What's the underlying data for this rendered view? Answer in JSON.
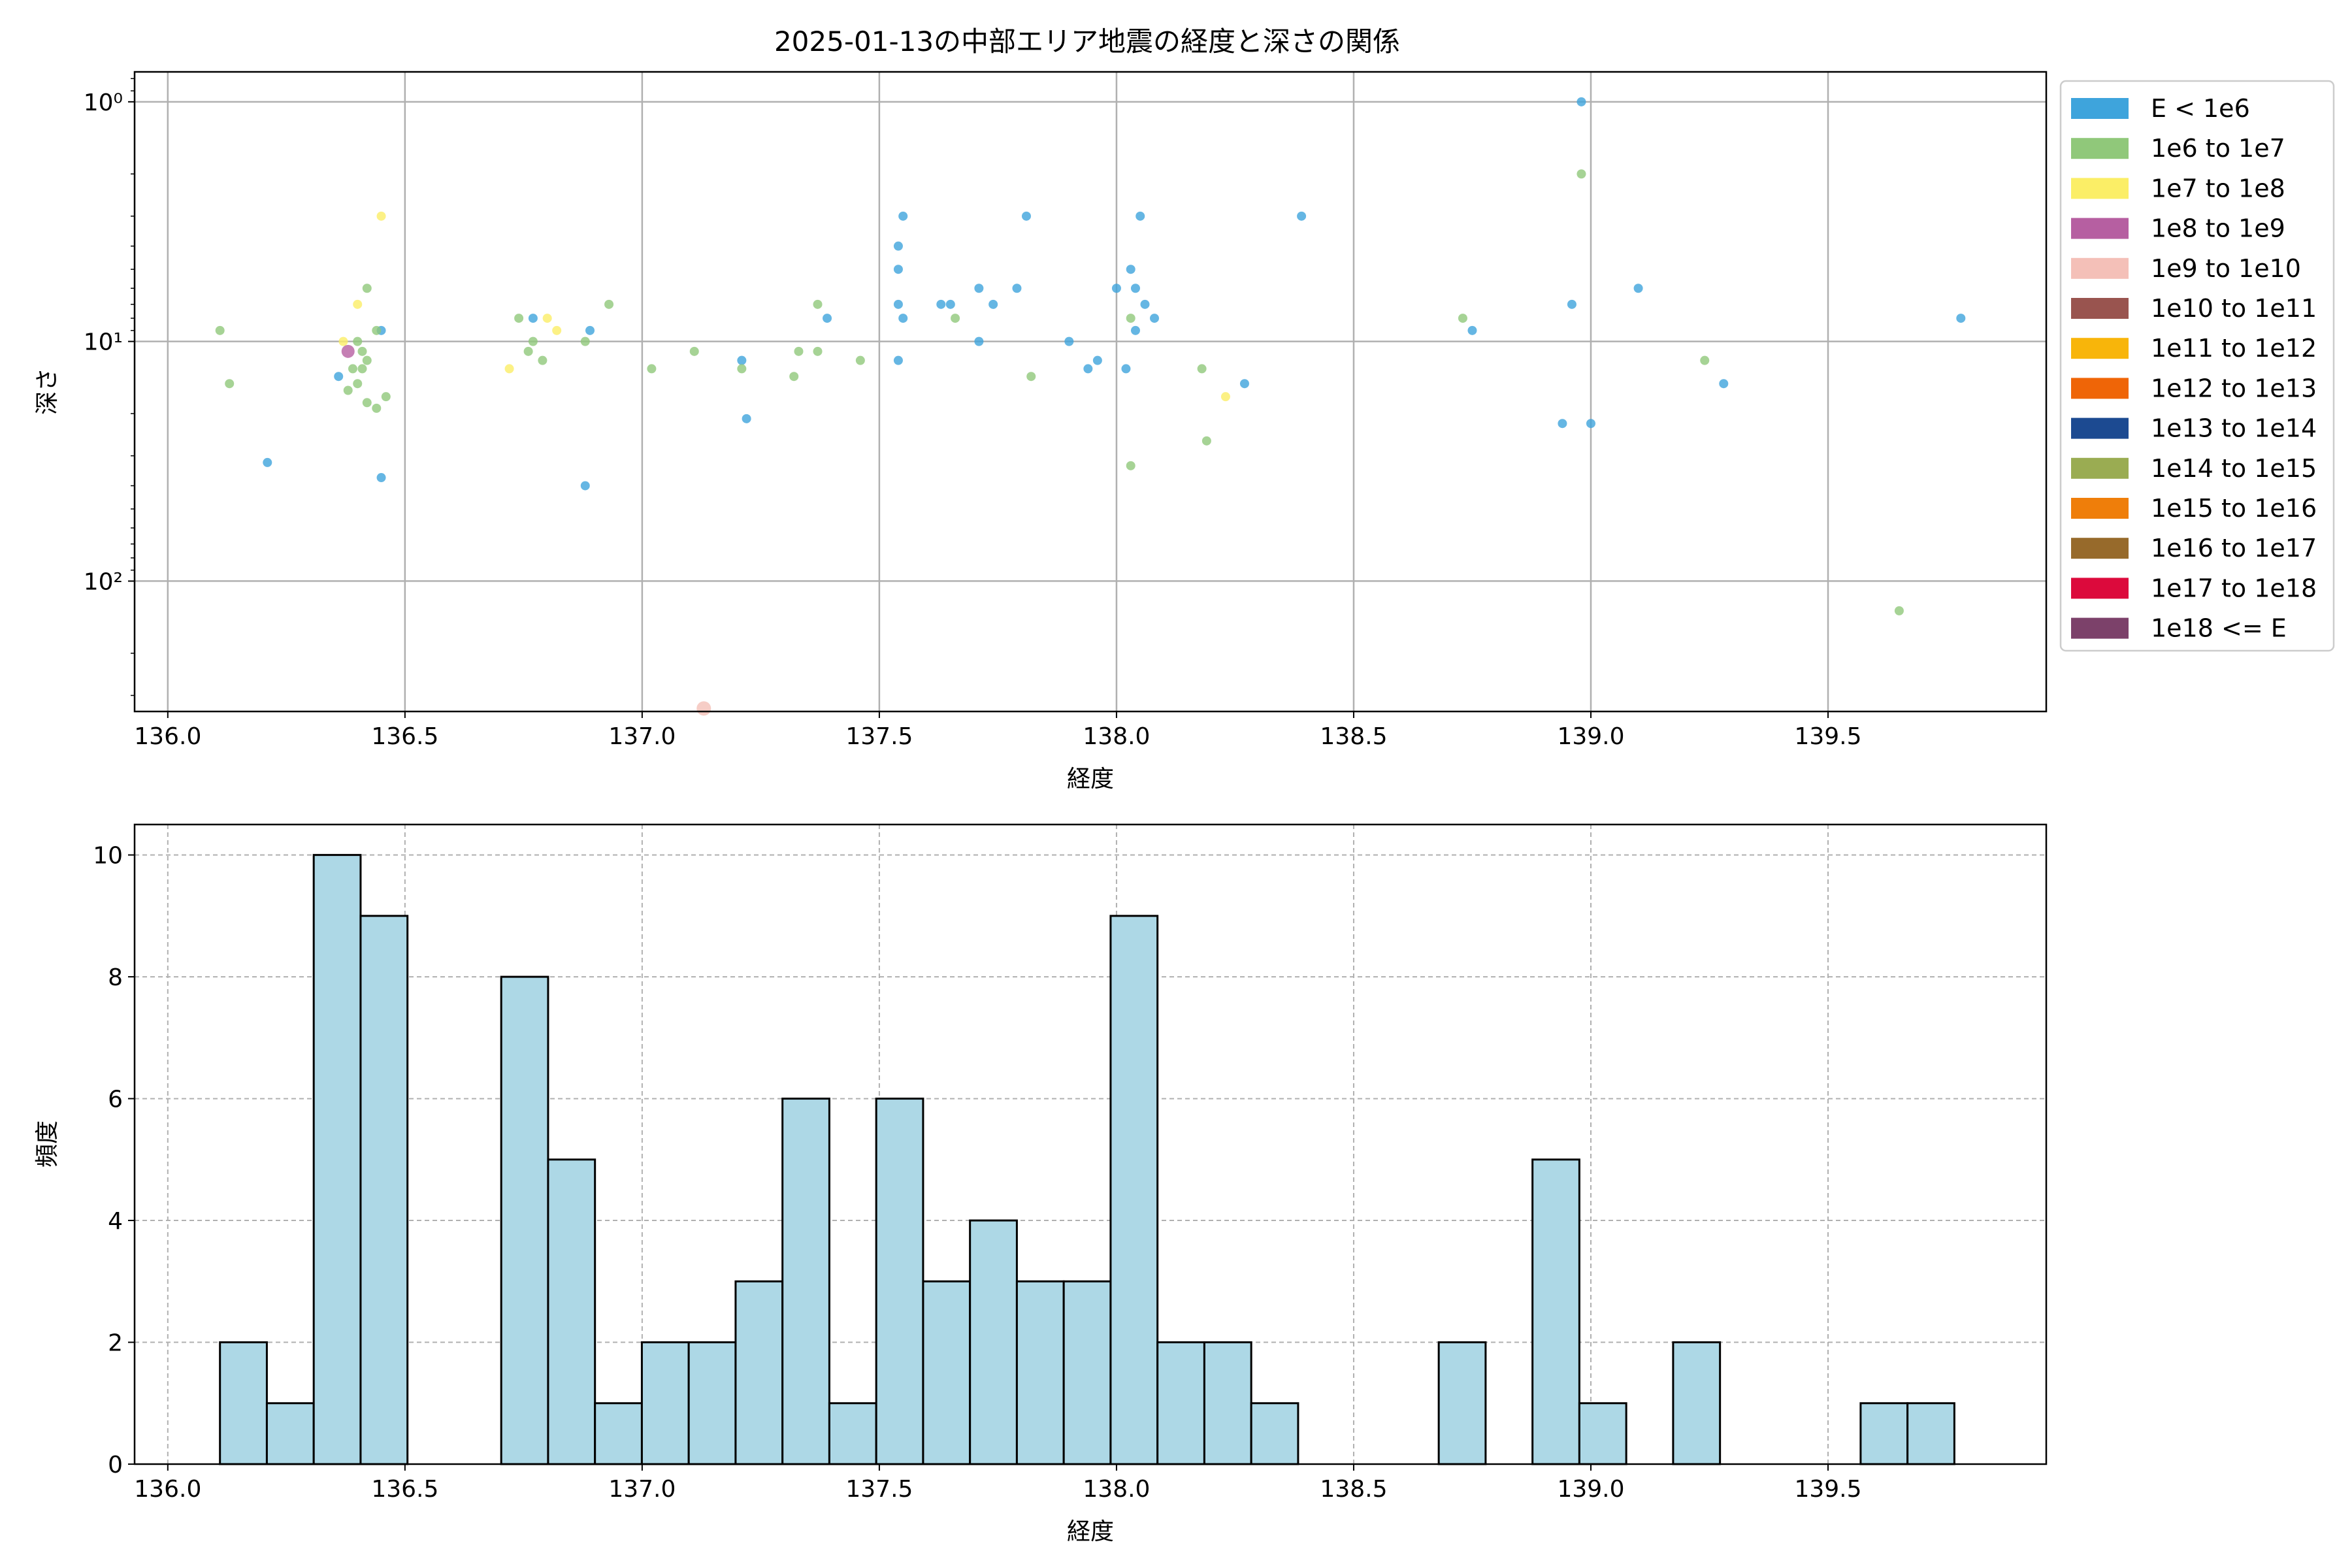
{
  "title": "2025-01-13の中部エリア地震の経度と深さの関係",
  "chart_data": [
    {
      "type": "scatter",
      "xlabel": "経度",
      "ylabel": "深さ",
      "xlim": [
        135.93,
        139.96
      ],
      "ylim": [
        0.75,
        350
      ],
      "y_scale": "log",
      "y_inverted": true,
      "x_ticks": [
        "136.0",
        "136.5",
        "137.0",
        "137.5",
        "138.0",
        "138.5",
        "139.0",
        "139.5"
      ],
      "y_ticks": [
        {
          "value": 1,
          "label": "10⁰"
        },
        {
          "value": 10,
          "label": "10¹"
        },
        {
          "value": 100,
          "label": "10²"
        }
      ],
      "grid": true,
      "legend_position": "outside-right",
      "legend": [
        {
          "label": "E < 1e6",
          "color": "#3ea4dc"
        },
        {
          "label": "1e6 to 1e7",
          "color": "#90c87a"
        },
        {
          "label": "1e7 to 1e8",
          "color": "#fbee66"
        },
        {
          "label": "1e8 to 1e9",
          "color": "#b65fa1"
        },
        {
          "label": "1e9 to 1e10",
          "color": "#f4c0b8"
        },
        {
          "label": "1e10 to 1e11",
          "color": "#99544f"
        },
        {
          "label": "1e11 to 1e12",
          "color": "#f8b50a"
        },
        {
          "label": "1e12 to 1e13",
          "color": "#ef6507"
        },
        {
          "label": "1e13 to 1e14",
          "color": "#1c4a91"
        },
        {
          "label": "1e14 to 1e15",
          "color": "#9aac52"
        },
        {
          "label": "1e15 to 1e16",
          "color": "#ef7e0a"
        },
        {
          "label": "1e16 to 1e17",
          "color": "#976a2b"
        },
        {
          "label": "1e17 to 1e18",
          "color": "#dc0a3c"
        },
        {
          "label": "1e18 <= E",
          "color": "#7c416a"
        }
      ],
      "points": [
        {
          "x": 136.21,
          "y": 32,
          "c": 0
        },
        {
          "x": 136.36,
          "y": 14,
          "c": 0
        },
        {
          "x": 136.45,
          "y": 37,
          "c": 0
        },
        {
          "x": 136.45,
          "y": 9,
          "c": 0
        },
        {
          "x": 136.77,
          "y": 8,
          "c": 0
        },
        {
          "x": 136.88,
          "y": 40,
          "c": 0
        },
        {
          "x": 136.89,
          "y": 9,
          "c": 0
        },
        {
          "x": 137.21,
          "y": 12,
          "c": 0
        },
        {
          "x": 137.22,
          "y": 21,
          "c": 0
        },
        {
          "x": 137.39,
          "y": 8,
          "c": 0
        },
        {
          "x": 137.54,
          "y": 12,
          "c": 0
        },
        {
          "x": 137.54,
          "y": 7,
          "c": 0
        },
        {
          "x": 137.54,
          "y": 5,
          "c": 0
        },
        {
          "x": 137.54,
          "y": 4,
          "c": 0
        },
        {
          "x": 137.55,
          "y": 8,
          "c": 0
        },
        {
          "x": 137.55,
          "y": 3,
          "c": 0
        },
        {
          "x": 137.63,
          "y": 7,
          "c": 0
        },
        {
          "x": 137.65,
          "y": 7,
          "c": 0
        },
        {
          "x": 137.71,
          "y": 6,
          "c": 0
        },
        {
          "x": 137.71,
          "y": 10,
          "c": 0
        },
        {
          "x": 137.74,
          "y": 7,
          "c": 0
        },
        {
          "x": 137.79,
          "y": 6,
          "c": 0
        },
        {
          "x": 137.81,
          "y": 3,
          "c": 0
        },
        {
          "x": 137.9,
          "y": 10,
          "c": 0
        },
        {
          "x": 137.94,
          "y": 13,
          "c": 0
        },
        {
          "x": 137.96,
          "y": 12,
          "c": 0
        },
        {
          "x": 138.0,
          "y": 6,
          "c": 0
        },
        {
          "x": 138.02,
          "y": 13,
          "c": 0
        },
        {
          "x": 138.03,
          "y": 5,
          "c": 0
        },
        {
          "x": 138.04,
          "y": 9,
          "c": 0
        },
        {
          "x": 138.04,
          "y": 6,
          "c": 0
        },
        {
          "x": 138.05,
          "y": 3,
          "c": 0
        },
        {
          "x": 138.06,
          "y": 7,
          "c": 0
        },
        {
          "x": 138.08,
          "y": 8,
          "c": 0
        },
        {
          "x": 138.27,
          "y": 15,
          "c": 0
        },
        {
          "x": 138.39,
          "y": 3,
          "c": 0
        },
        {
          "x": 138.75,
          "y": 9,
          "c": 0
        },
        {
          "x": 138.94,
          "y": 22,
          "c": 0
        },
        {
          "x": 138.96,
          "y": 7,
          "c": 0
        },
        {
          "x": 138.98,
          "y": 1,
          "c": 0
        },
        {
          "x": 139.0,
          "y": 22,
          "c": 0
        },
        {
          "x": 139.1,
          "y": 6,
          "c": 0
        },
        {
          "x": 139.28,
          "y": 15,
          "c": 0
        },
        {
          "x": 139.78,
          "y": 8,
          "c": 0
        },
        {
          "x": 136.11,
          "y": 9,
          "c": 1
        },
        {
          "x": 136.13,
          "y": 15,
          "c": 1
        },
        {
          "x": 136.38,
          "y": 16,
          "c": 1
        },
        {
          "x": 136.39,
          "y": 13,
          "c": 1
        },
        {
          "x": 136.4,
          "y": 15,
          "c": 1
        },
        {
          "x": 136.4,
          "y": 10,
          "c": 1
        },
        {
          "x": 136.41,
          "y": 11,
          "c": 1
        },
        {
          "x": 136.41,
          "y": 13,
          "c": 1
        },
        {
          "x": 136.42,
          "y": 12,
          "c": 1
        },
        {
          "x": 136.42,
          "y": 18,
          "c": 1
        },
        {
          "x": 136.42,
          "y": 6,
          "c": 1
        },
        {
          "x": 136.44,
          "y": 19,
          "c": 1
        },
        {
          "x": 136.44,
          "y": 9,
          "c": 1
        },
        {
          "x": 136.46,
          "y": 17,
          "c": 1
        },
        {
          "x": 136.74,
          "y": 8,
          "c": 1
        },
        {
          "x": 136.76,
          "y": 11,
          "c": 1
        },
        {
          "x": 136.77,
          "y": 10,
          "c": 1
        },
        {
          "x": 136.79,
          "y": 12,
          "c": 1
        },
        {
          "x": 136.88,
          "y": 10,
          "c": 1
        },
        {
          "x": 136.93,
          "y": 7,
          "c": 1
        },
        {
          "x": 137.02,
          "y": 13,
          "c": 1
        },
        {
          "x": 137.11,
          "y": 11,
          "c": 1
        },
        {
          "x": 137.21,
          "y": 13,
          "c": 1
        },
        {
          "x": 137.32,
          "y": 14,
          "c": 1
        },
        {
          "x": 137.33,
          "y": 11,
          "c": 1
        },
        {
          "x": 137.37,
          "y": 11,
          "c": 1
        },
        {
          "x": 137.37,
          "y": 7,
          "c": 1
        },
        {
          "x": 137.46,
          "y": 12,
          "c": 1
        },
        {
          "x": 137.66,
          "y": 8,
          "c": 1
        },
        {
          "x": 137.82,
          "y": 14,
          "c": 1
        },
        {
          "x": 138.03,
          "y": 8,
          "c": 1
        },
        {
          "x": 138.03,
          "y": 33,
          "c": 1
        },
        {
          "x": 138.18,
          "y": 13,
          "c": 1
        },
        {
          "x": 138.19,
          "y": 26,
          "c": 1
        },
        {
          "x": 138.73,
          "y": 8,
          "c": 1
        },
        {
          "x": 138.98,
          "y": 2,
          "c": 1
        },
        {
          "x": 139.24,
          "y": 12,
          "c": 1
        },
        {
          "x": 139.65,
          "y": 133,
          "c": 1
        },
        {
          "x": 136.37,
          "y": 10,
          "c": 2
        },
        {
          "x": 136.4,
          "y": 7,
          "c": 2
        },
        {
          "x": 136.45,
          "y": 3,
          "c": 2
        },
        {
          "x": 136.72,
          "y": 13,
          "c": 2
        },
        {
          "x": 136.8,
          "y": 8,
          "c": 2
        },
        {
          "x": 136.82,
          "y": 9,
          "c": 2
        },
        {
          "x": 138.23,
          "y": 17,
          "c": 2
        },
        {
          "x": 136.38,
          "y": 11,
          "c": 3
        },
        {
          "x": 137.13,
          "y": 340,
          "c": 4
        }
      ]
    },
    {
      "type": "bar",
      "xlabel": "経度",
      "ylabel": "頻度",
      "xlim": [
        135.93,
        139.96
      ],
      "ylim": [
        0,
        10.5
      ],
      "x_ticks": [
        "136.0",
        "136.5",
        "137.0",
        "137.5",
        "138.0",
        "138.5",
        "139.0",
        "139.5"
      ],
      "y_ticks": [
        "0",
        "2",
        "4",
        "6",
        "8",
        "10"
      ],
      "grid": true,
      "bar_color": "#add8e6",
      "bin_start": 136.11,
      "bin_width": 0.09882,
      "values": [
        2,
        1,
        10,
        9,
        0,
        0,
        8,
        5,
        1,
        2,
        2,
        3,
        6,
        1,
        6,
        3,
        4,
        3,
        3,
        9,
        2,
        2,
        1,
        0,
        0,
        0,
        2,
        0,
        5,
        1,
        0,
        2,
        0,
        0,
        0,
        1,
        1
      ]
    }
  ]
}
